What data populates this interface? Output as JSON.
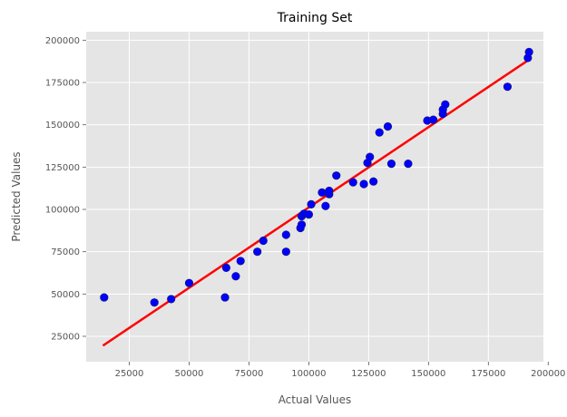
{
  "chart_data": {
    "type": "scatter",
    "title": "Training Set",
    "xlabel": "Actual Values",
    "ylabel": "Predicted Values",
    "xlim": [
      7000,
      198000
    ],
    "ylim": [
      10000,
      205000
    ],
    "xticks": [
      25000,
      50000,
      75000,
      100000,
      125000,
      150000,
      175000,
      200000
    ],
    "yticks": [
      25000,
      50000,
      75000,
      100000,
      125000,
      150000,
      175000,
      200000
    ],
    "grid": true,
    "series": [
      {
        "kind": "scatter",
        "color": "#0000ff",
        "points": [
          [
            14500,
            48000
          ],
          [
            35500,
            45000
          ],
          [
            42500,
            47000
          ],
          [
            50000,
            56500
          ],
          [
            65000,
            48000
          ],
          [
            65500,
            65500
          ],
          [
            69500,
            60500
          ],
          [
            71500,
            69500
          ],
          [
            78500,
            75000
          ],
          [
            81000,
            81500
          ],
          [
            90500,
            85000
          ],
          [
            90500,
            75000
          ],
          [
            96500,
            89000
          ],
          [
            97000,
            91000
          ],
          [
            97000,
            96000
          ],
          [
            98000,
            97500
          ],
          [
            100000,
            97000
          ],
          [
            101000,
            103000
          ],
          [
            105500,
            110000
          ],
          [
            107000,
            102000
          ],
          [
            108500,
            109000
          ],
          [
            108500,
            111000
          ],
          [
            111500,
            120000
          ],
          [
            118500,
            116000
          ],
          [
            123000,
            115000
          ],
          [
            124500,
            127500
          ],
          [
            125500,
            131000
          ],
          [
            127000,
            116500
          ],
          [
            129500,
            145500
          ],
          [
            133000,
            149000
          ],
          [
            134500,
            127000
          ],
          [
            141500,
            127000
          ],
          [
            149500,
            152500
          ],
          [
            152000,
            153000
          ],
          [
            156000,
            156500
          ],
          [
            156000,
            159000
          ],
          [
            157000,
            162000
          ],
          [
            183000,
            172500
          ],
          [
            191500,
            189500
          ],
          [
            192000,
            193000
          ]
        ]
      },
      {
        "kind": "line",
        "color": "#ff0000",
        "points": [
          [
            14000,
            19500
          ],
          [
            192000,
            188500
          ]
        ]
      }
    ]
  }
}
